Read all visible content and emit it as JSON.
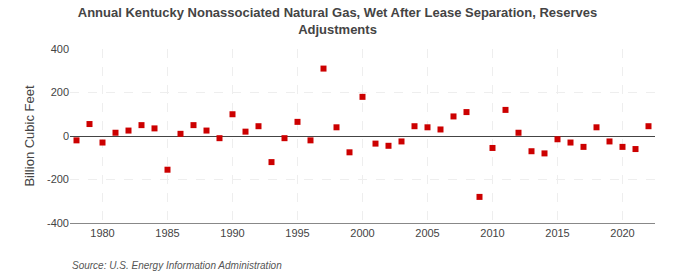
{
  "chart_data": {
    "type": "scatter",
    "title": "Annual Kentucky Nonassociated Natural Gas, Wet After Lease Separation, Reserves\nAdjustments",
    "y_label": "Billion Cubic Feet",
    "annotations": [
      "Source: U.S. Energy Information Administration"
    ],
    "x": [
      1978,
      1979,
      1980,
      1981,
      1982,
      1983,
      1984,
      1985,
      1986,
      1987,
      1988,
      1989,
      1990,
      1991,
      1992,
      1993,
      1994,
      1995,
      1996,
      1997,
      1998,
      1999,
      2000,
      2001,
      2002,
      2003,
      2004,
      2005,
      2006,
      2007,
      2008,
      2009,
      2010,
      2011,
      2012,
      2013,
      2014,
      2015,
      2016,
      2017,
      2018,
      2019,
      2020,
      2021,
      2022
    ],
    "values": [
      -20,
      55,
      -30,
      15,
      25,
      50,
      35,
      -155,
      10,
      50,
      25,
      -10,
      100,
      20,
      45,
      -120,
      -10,
      65,
      -20,
      310,
      40,
      -75,
      180,
      -35,
      -45,
      -25,
      45,
      40,
      30,
      90,
      110,
      -280,
      -55,
      120,
      15,
      -70,
      -80,
      -15,
      -30,
      -50,
      40,
      -25,
      -50,
      -60,
      45
    ],
    "color": "#cc0000",
    "marker": "square",
    "xlim": [
      1977.5,
      2022.5
    ],
    "ylim": [
      -400,
      400
    ],
    "xticks": [
      1980,
      1985,
      1990,
      1995,
      2000,
      2005,
      2010,
      2015,
      2020
    ],
    "yticks": [
      -400,
      -200,
      0,
      200,
      400
    ],
    "grid": true
  }
}
